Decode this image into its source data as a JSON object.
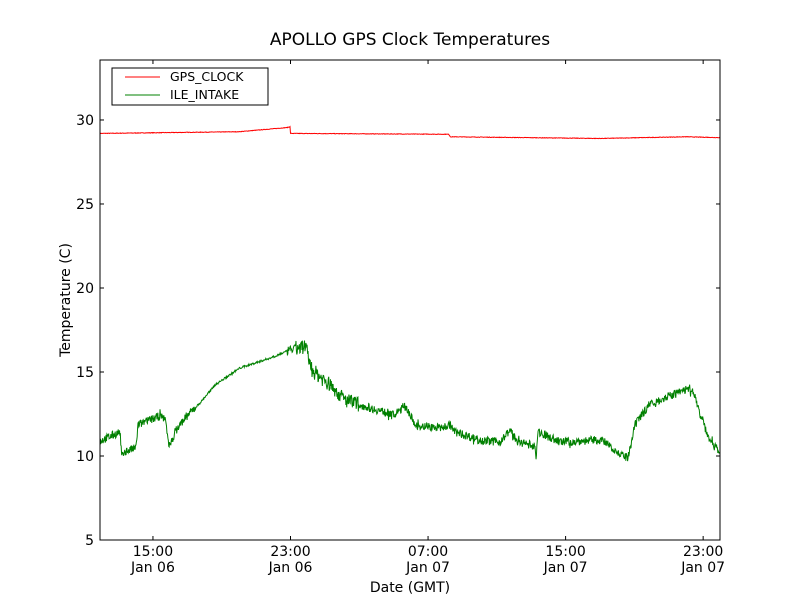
{
  "chart_data": {
    "type": "line",
    "title": "APOLLO GPS Clock Temperatures",
    "xlabel": "Date (GMT)",
    "ylabel": "Temperature (C)",
    "x_units": "hours since Jan 06 00:00 GMT",
    "xlim": [
      11.92,
      47.98
    ],
    "ylim": [
      5,
      33.57
    ],
    "yticks": [
      5,
      10,
      15,
      20,
      25,
      30
    ],
    "xticks": [
      {
        "x": 15,
        "time": "15:00",
        "date": "Jan 06"
      },
      {
        "x": 23,
        "time": "23:00",
        "date": "Jan 06"
      },
      {
        "x": 31,
        "time": "07:00",
        "date": "Jan 07"
      },
      {
        "x": 39,
        "time": "15:00",
        "date": "Jan 07"
      },
      {
        "x": 47,
        "time": "23:00",
        "date": "Jan 07"
      }
    ],
    "grid": false,
    "legend_position": "top-left",
    "series": [
      {
        "name": "GPS_CLOCK",
        "color": "#ff0000",
        "x": [
          11.92,
          20.0,
          22.8,
          22.97,
          23.0,
          32.2,
          32.3,
          41.0,
          46.0,
          47.98
        ],
        "y": [
          29.2,
          29.3,
          29.55,
          29.6,
          29.2,
          29.15,
          29.0,
          28.9,
          29.0,
          28.95
        ]
      },
      {
        "name": "ILE_INTAKE",
        "color": "#008000",
        "x": [
          11.92,
          13.08,
          13.2,
          13.31,
          14.01,
          14.13,
          14.83,
          15.41,
          15.76,
          15.87,
          15.99,
          16.28,
          16.86,
          17.73,
          18.61,
          20.06,
          21.81,
          22.97,
          23.84,
          24.25,
          25.3,
          26.17,
          27.62,
          29.08,
          29.66,
          30.24,
          31.7,
          32.28,
          32.57,
          34.02,
          35.19,
          35.77,
          36.23,
          37.22,
          37.28,
          37.4,
          38.68,
          41.0,
          41.58,
          42.17,
          42.63,
          43.04,
          43.91,
          45.08,
          46.24,
          46.53,
          46.82,
          47.4,
          47.98
        ],
        "y": [
          10.89,
          11.43,
          9.88,
          10.24,
          10.48,
          11.85,
          12.14,
          12.38,
          12.14,
          10.95,
          10.54,
          11.43,
          12.26,
          13.15,
          14.23,
          15.24,
          15.83,
          16.31,
          16.55,
          15.12,
          14.23,
          13.33,
          12.86,
          12.44,
          13.04,
          11.85,
          11.67,
          11.85,
          11.43,
          10.95,
          10.83,
          11.55,
          10.83,
          10.6,
          9.76,
          11.43,
          10.83,
          10.95,
          10.65,
          10.06,
          9.88,
          11.85,
          13.15,
          13.57,
          14.05,
          13.63,
          12.44,
          10.95,
          10.24
        ]
      }
    ]
  }
}
